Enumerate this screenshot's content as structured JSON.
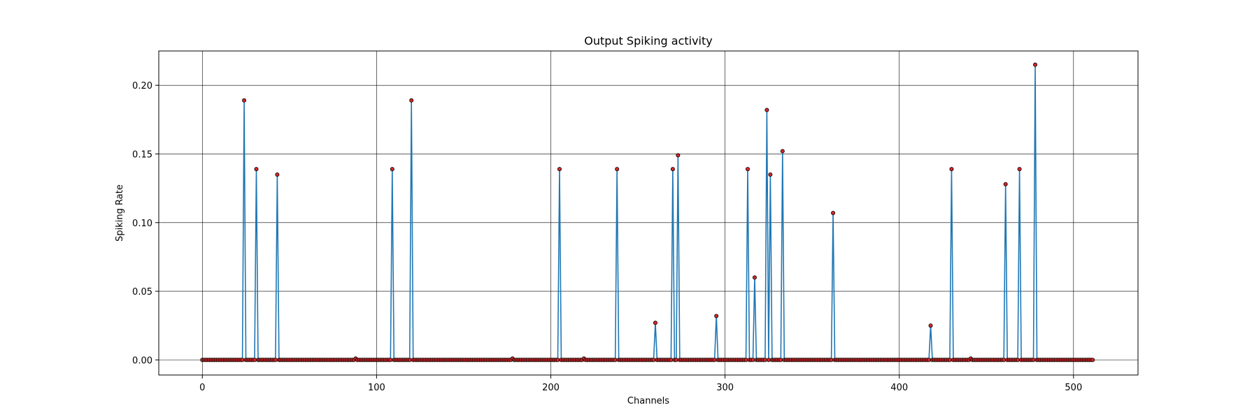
{
  "chart_data": {
    "type": "line",
    "title": "Output Spiking activity",
    "xlabel": "Channels",
    "ylabel": "Spiking Rate",
    "xlim": [
      -25,
      537
    ],
    "ylim": [
      -0.011,
      0.225
    ],
    "x_ticks": [
      0,
      100,
      200,
      300,
      400,
      500
    ],
    "x_tick_labels": [
      "0",
      "100",
      "200",
      "300",
      "400",
      "500"
    ],
    "y_ticks": [
      0.0,
      0.05,
      0.1,
      0.15,
      0.2
    ],
    "y_tick_labels": [
      "0.00",
      "0.05",
      "0.10",
      "0.15",
      "0.20"
    ],
    "grid": true,
    "n_channels": 512,
    "default_value": 0,
    "series": [
      {
        "line_color": "#1f77b4",
        "marker_face_color": "#d62728",
        "marker_edge_color": "#000000",
        "nonzero_points": [
          {
            "x": 24,
            "y": 0.189
          },
          {
            "x": 31,
            "y": 0.139
          },
          {
            "x": 43,
            "y": 0.135
          },
          {
            "x": 88,
            "y": 0.001
          },
          {
            "x": 109,
            "y": 0.139
          },
          {
            "x": 120,
            "y": 0.189
          },
          {
            "x": 178,
            "y": 0.001
          },
          {
            "x": 205,
            "y": 0.139
          },
          {
            "x": 219,
            "y": 0.001
          },
          {
            "x": 238,
            "y": 0.139
          },
          {
            "x": 260,
            "y": 0.027
          },
          {
            "x": 270,
            "y": 0.139
          },
          {
            "x": 273,
            "y": 0.149
          },
          {
            "x": 295,
            "y": 0.032
          },
          {
            "x": 313,
            "y": 0.139
          },
          {
            "x": 317,
            "y": 0.06
          },
          {
            "x": 324,
            "y": 0.182
          },
          {
            "x": 326,
            "y": 0.135
          },
          {
            "x": 333,
            "y": 0.152
          },
          {
            "x": 362,
            "y": 0.107
          },
          {
            "x": 418,
            "y": 0.025
          },
          {
            "x": 430,
            "y": 0.139
          },
          {
            "x": 441,
            "y": 0.001
          },
          {
            "x": 461,
            "y": 0.128
          },
          {
            "x": 469,
            "y": 0.139
          },
          {
            "x": 478,
            "y": 0.215
          }
        ]
      }
    ]
  }
}
